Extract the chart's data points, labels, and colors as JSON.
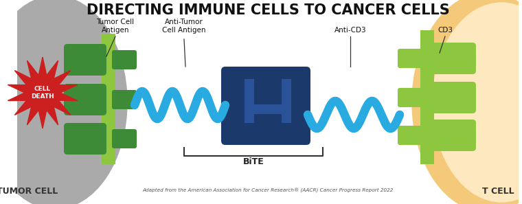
{
  "title": "DIRECTING IMMUNE CELLS TO CANCER CELLS",
  "title_fontsize": 15,
  "title_fontweight": "bold",
  "bg_color": "#ffffff",
  "label_tumor_cell": "TUMOR CELL",
  "label_t_cell": "T CELL",
  "label_tumor_antigen": "Tumor Cell\nAntigen",
  "label_anti_tumor": "Anti-Tumor\nCell Antigen",
  "label_anti_cd3": "Anti-CD3",
  "label_bite": "BiTE",
  "label_cd3": "CD3",
  "label_cell_death": "CELL\nDEATH",
  "citation": "Adapted from the American Association for Cancer Research® (AACR) Cancer Progress Report 2022",
  "dark_green": "#3d8b37",
  "light_green": "#8dc63f",
  "dark_blue": "#1b3a6b",
  "light_blue": "#29abe2",
  "red_burst": "#cc1f1f",
  "grey_cell": "#aaaaaa",
  "yellow_cell": "#f5c97a",
  "yellow_cell_inner": "#fde8c0",
  "white": "#ffffff"
}
